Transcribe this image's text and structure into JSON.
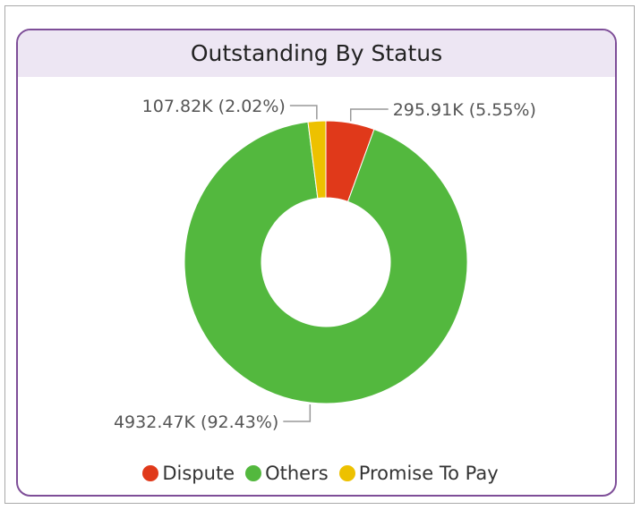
{
  "chart_data": {
    "type": "pie",
    "title": "Outstanding By Status",
    "donut": true,
    "slices": [
      {
        "name": "Dispute",
        "value": 295.91,
        "percent": 5.55,
        "label": "295.91K (5.55%)",
        "color": "#e0391a"
      },
      {
        "name": "Others",
        "value": 4932.47,
        "percent": 92.43,
        "label": "4932.47K (92.43%)",
        "color": "#53b83e"
      },
      {
        "name": "Promise To Pay",
        "value": 107.82,
        "percent": 2.02,
        "label": "107.82K (2.02%)",
        "color": "#edc100"
      }
    ],
    "legend_position": "bottom"
  },
  "colors": {
    "card_border": "#7e4e98",
    "header_bg": "#ede6f3",
    "leader_line": "#999999"
  }
}
